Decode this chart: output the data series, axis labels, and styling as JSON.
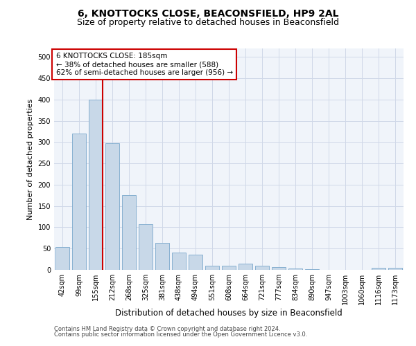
{
  "title_line1": "6, KNOTTOCKS CLOSE, BEACONSFIELD, HP9 2AL",
  "title_line2": "Size of property relative to detached houses in Beaconsfield",
  "xlabel": "Distribution of detached houses by size in Beaconsfield",
  "ylabel": "Number of detached properties",
  "footer_line1": "Contains HM Land Registry data © Crown copyright and database right 2024.",
  "footer_line2": "Contains public sector information licensed under the Open Government Licence v3.0.",
  "categories": [
    "42sqm",
    "99sqm",
    "155sqm",
    "212sqm",
    "268sqm",
    "325sqm",
    "381sqm",
    "438sqm",
    "494sqm",
    "551sqm",
    "608sqm",
    "664sqm",
    "721sqm",
    "777sqm",
    "834sqm",
    "890sqm",
    "947sqm",
    "1003sqm",
    "1060sqm",
    "1116sqm",
    "1173sqm"
  ],
  "values": [
    53,
    320,
    400,
    297,
    175,
    107,
    63,
    40,
    35,
    10,
    9,
    15,
    9,
    7,
    4,
    1,
    0,
    0,
    0,
    5,
    5
  ],
  "bar_color": "#c8d8e8",
  "bar_edge_color": "#7aa8cc",
  "vline_color": "#cc0000",
  "annotation_text": "6 KNOTTOCKS CLOSE: 185sqm\n← 38% of detached houses are smaller (588)\n62% of semi-detached houses are larger (956) →",
  "annotation_box_color": "white",
  "annotation_box_edge": "#cc0000",
  "ylim": [
    0,
    520
  ],
  "yticks": [
    0,
    50,
    100,
    150,
    200,
    250,
    300,
    350,
    400,
    450,
    500
  ],
  "grid_color": "#d0d8e8",
  "bg_color": "#f0f4fa",
  "title_fontsize": 10,
  "subtitle_fontsize": 9,
  "ylabel_fontsize": 8,
  "xlabel_fontsize": 8.5,
  "tick_fontsize": 7,
  "footer_fontsize": 6,
  "annot_fontsize": 7.5
}
